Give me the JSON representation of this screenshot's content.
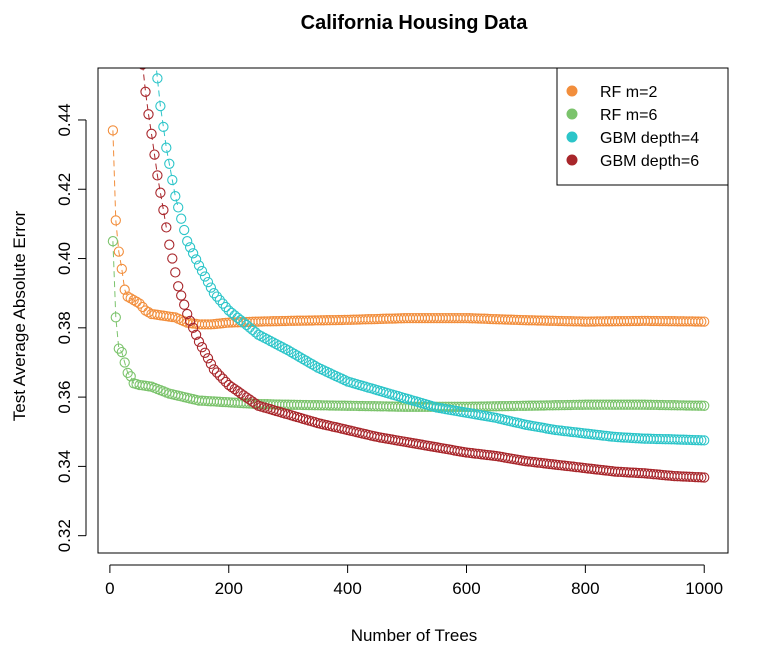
{
  "chart_data": {
    "type": "scatter",
    "title": "California Housing Data",
    "xlabel": "Number of Trees",
    "ylabel": "Test Average Absolute Error",
    "xlim": [
      -20,
      1040
    ],
    "ylim": [
      0.315,
      0.455
    ],
    "x_ticks": [
      0,
      200,
      400,
      600,
      800,
      1000
    ],
    "y_ticks": [
      0.32,
      0.34,
      0.36,
      0.38,
      0.4,
      0.42,
      0.44
    ],
    "x_tick_labels": [
      "0",
      "200",
      "400",
      "600",
      "800",
      "1000"
    ],
    "y_tick_labels": [
      "0.32",
      "0.34",
      "0.36",
      "0.38",
      "0.40",
      "0.42",
      "0.44"
    ],
    "grid": false,
    "legend_position": "top-right",
    "marker": "open-circle",
    "series": [
      {
        "name": "RF m=2",
        "color": "#F28E3C",
        "dashed_connector": true,
        "anchors": [
          [
            5,
            0.437
          ],
          [
            10,
            0.411
          ],
          [
            15,
            0.402
          ],
          [
            20,
            0.397
          ],
          [
            25,
            0.391
          ],
          [
            30,
            0.389
          ],
          [
            40,
            0.388
          ],
          [
            50,
            0.387
          ],
          [
            60,
            0.385
          ],
          [
            70,
            0.384
          ],
          [
            90,
            0.3835
          ],
          [
            110,
            0.383
          ],
          [
            130,
            0.3815
          ],
          [
            150,
            0.381
          ],
          [
            170,
            0.381
          ],
          [
            200,
            0.3815
          ],
          [
            250,
            0.3818
          ],
          [
            300,
            0.382
          ],
          [
            400,
            0.3823
          ],
          [
            500,
            0.3828
          ],
          [
            600,
            0.3828
          ],
          [
            700,
            0.3822
          ],
          [
            800,
            0.3818
          ],
          [
            900,
            0.382
          ],
          [
            1000,
            0.3818
          ]
        ]
      },
      {
        "name": "RF m=6",
        "color": "#7BC36C",
        "dashed_connector": true,
        "anchors": [
          [
            5,
            0.405
          ],
          [
            10,
            0.383
          ],
          [
            15,
            0.374
          ],
          [
            20,
            0.373
          ],
          [
            25,
            0.37
          ],
          [
            30,
            0.367
          ],
          [
            35,
            0.366
          ],
          [
            40,
            0.364
          ],
          [
            50,
            0.3635
          ],
          [
            70,
            0.363
          ],
          [
            100,
            0.361
          ],
          [
            150,
            0.359
          ],
          [
            200,
            0.3585
          ],
          [
            250,
            0.358
          ],
          [
            300,
            0.3578
          ],
          [
            400,
            0.3575
          ],
          [
            500,
            0.3572
          ],
          [
            600,
            0.3572
          ],
          [
            700,
            0.3575
          ],
          [
            800,
            0.3578
          ],
          [
            900,
            0.3578
          ],
          [
            1000,
            0.3575
          ]
        ]
      },
      {
        "name": "GBM depth=4",
        "color": "#2CC5C9",
        "dashed_connector": true,
        "anchors": [
          [
            75,
            0.46
          ],
          [
            85,
            0.444
          ],
          [
            95,
            0.432
          ],
          [
            110,
            0.418
          ],
          [
            130,
            0.405
          ],
          [
            150,
            0.398
          ],
          [
            175,
            0.39
          ],
          [
            200,
            0.385
          ],
          [
            250,
            0.378
          ],
          [
            300,
            0.3735
          ],
          [
            350,
            0.3685
          ],
          [
            400,
            0.3645
          ],
          [
            450,
            0.362
          ],
          [
            500,
            0.3595
          ],
          [
            550,
            0.357
          ],
          [
            600,
            0.3555
          ],
          [
            650,
            0.354
          ],
          [
            700,
            0.352
          ],
          [
            750,
            0.3505
          ],
          [
            800,
            0.3495
          ],
          [
            850,
            0.3485
          ],
          [
            900,
            0.348
          ],
          [
            950,
            0.3478
          ],
          [
            1000,
            0.3475
          ]
        ]
      },
      {
        "name": "GBM depth=6",
        "color": "#A8262B",
        "dashed_connector": true,
        "anchors": [
          [
            55,
            0.456
          ],
          [
            62,
            0.445
          ],
          [
            70,
            0.436
          ],
          [
            80,
            0.424
          ],
          [
            90,
            0.414
          ],
          [
            100,
            0.404
          ],
          [
            115,
            0.392
          ],
          [
            130,
            0.384
          ],
          [
            150,
            0.376
          ],
          [
            175,
            0.368
          ],
          [
            200,
            0.3635
          ],
          [
            250,
            0.3575
          ],
          [
            300,
            0.355
          ],
          [
            350,
            0.3525
          ],
          [
            400,
            0.3505
          ],
          [
            450,
            0.3485
          ],
          [
            500,
            0.347
          ],
          [
            550,
            0.3455
          ],
          [
            600,
            0.344
          ],
          [
            650,
            0.343
          ],
          [
            700,
            0.3415
          ],
          [
            750,
            0.3405
          ],
          [
            800,
            0.3395
          ],
          [
            850,
            0.3385
          ],
          [
            900,
            0.338
          ],
          [
            950,
            0.3372
          ],
          [
            1000,
            0.3368
          ]
        ]
      }
    ]
  }
}
